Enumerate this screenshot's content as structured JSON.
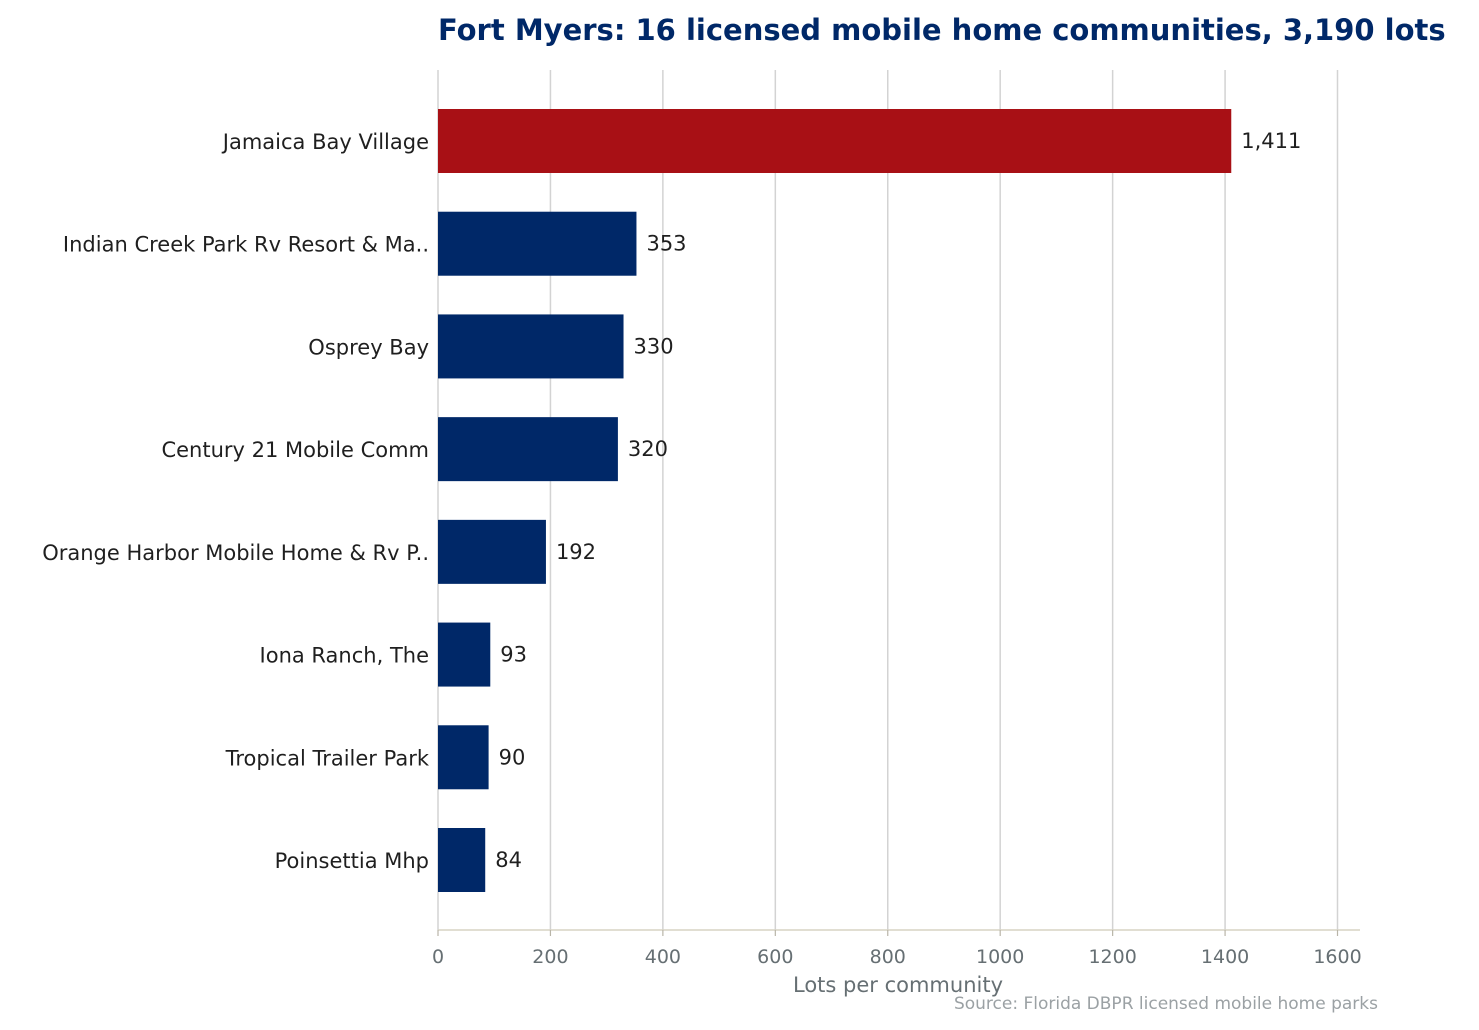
{
  "chart_data": {
    "type": "bar",
    "orientation": "horizontal",
    "title": "Fort Myers: 16 licensed mobile home communities, 3,190 lots",
    "xlabel": "Lots per community",
    "source": "Source: Florida DBPR licensed mobile home parks",
    "categories": [
      "Jamaica Bay Village",
      "Indian Creek Park Rv Resort & Ma..",
      "Osprey Bay",
      "Century 21 Mobile Comm",
      "Orange Harbor Mobile Home & Rv P..",
      "Iona Ranch, The",
      "Tropical Trailer Park",
      "Poinsettia Mhp"
    ],
    "values": [
      1411,
      353,
      330,
      320,
      192,
      93,
      90,
      84
    ],
    "value_labels": [
      "1,411",
      "353",
      "330",
      "320",
      "192",
      "93",
      "90",
      "84"
    ],
    "highlight_index": 0,
    "xlim": [
      0,
      1640
    ],
    "xticks": [
      0,
      200,
      400,
      600,
      800,
      1000,
      1200,
      1400,
      1600
    ],
    "grid": true,
    "colors": {
      "highlight": "#a81015",
      "bar": "#002868",
      "title": "#002868"
    }
  }
}
